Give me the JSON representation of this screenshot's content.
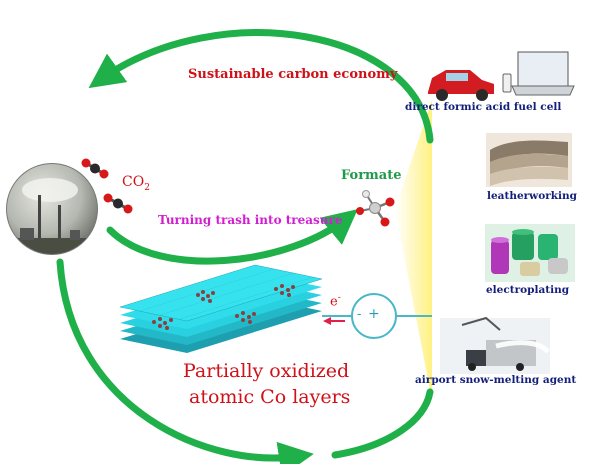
{
  "labels": {
    "top_title": "Sustainable carbon economy",
    "co2_prefix": "CO",
    "co2_subscript": "2",
    "turning": "Turning trash into treasure",
    "formate": "Formate",
    "electron_symbol": "e",
    "electron_superscript": "-",
    "minus": "-",
    "plus": "+",
    "co_line1": "Partially oxidized",
    "co_line2": "atomic Co layers"
  },
  "applications": [
    {
      "label": "direct formic acid fuel cell",
      "picture": "car-and-laptop"
    },
    {
      "label": "leatherworking",
      "picture": "leather-rolls"
    },
    {
      "label": "electroplating",
      "picture": "metal-cylinders"
    },
    {
      "label": "airport snow-melting agent",
      "picture": "airport-vehicle"
    }
  ],
  "colors": {
    "cycle_arrow": "#20b04a",
    "title_red": "#d01018",
    "magenta": "#d21ed2",
    "navy": "#13207a",
    "formate_green": "#1f9a4a",
    "layer_cyan": "#28d0e0",
    "electron_red": "#e0204a",
    "glow_yellow": "#fff07a"
  }
}
